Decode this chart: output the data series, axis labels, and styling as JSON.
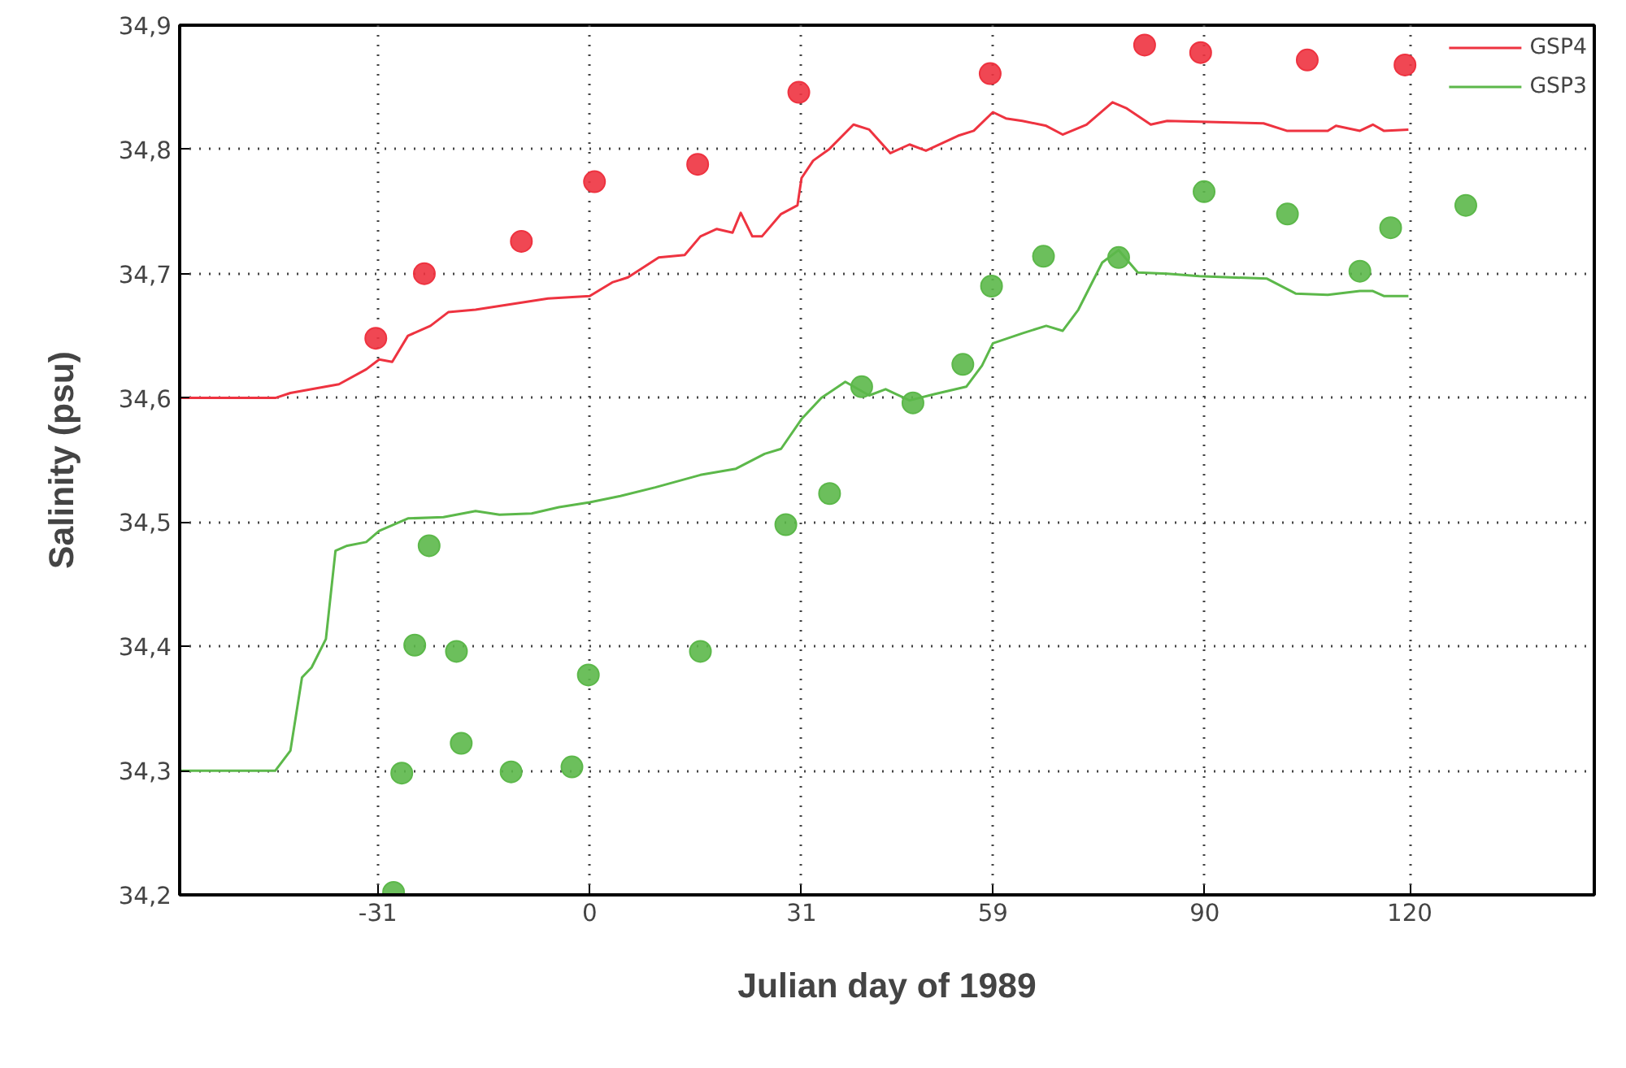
{
  "chart_data": {
    "type": "line",
    "xlabel": "Julian day of 1989",
    "ylabel": "Salinity (psu)",
    "xlim": [
      -60,
      147
    ],
    "ylim": [
      34.2,
      34.9
    ],
    "xticks": [
      -31,
      0,
      31,
      59,
      90,
      120
    ],
    "yticks": [
      {
        "value": 34.2,
        "label": "34,2"
      },
      {
        "value": 34.3,
        "label": "34,3"
      },
      {
        "value": 34.4,
        "label": "34,4"
      },
      {
        "value": 34.5,
        "label": "34,5"
      },
      {
        "value": 34.6,
        "label": "34,6"
      },
      {
        "value": 34.7,
        "label": "34,7"
      },
      {
        "value": 34.8,
        "label": "34,8"
      },
      {
        "value": 34.9,
        "label": "34,9"
      }
    ],
    "grid": true,
    "legend": "top right",
    "line_style": "solid",
    "series": [
      {
        "name": "GSP4",
        "color": "#ee3340",
        "x": [
          -60,
          -46,
          -43.8,
          -36.7,
          -32.7,
          -30.8,
          -28.9,
          -26.6,
          -23.3,
          -20.7,
          -16.7,
          -14.4,
          -6.1,
          0,
          3.3,
          5.6,
          10.1,
          13.9,
          16.2,
          18.6,
          20.9,
          22.1,
          23.8,
          25.2,
          28,
          30.4,
          31,
          32.7,
          35,
          38.6,
          40.9,
          44,
          46.8,
          49.2,
          53.9,
          56.2,
          59,
          60.9,
          63.3,
          66.8,
          69.2,
          72.7,
          76.5,
          78.6,
          82.1,
          84.5,
          98.6,
          102,
          108,
          109.2,
          112.7,
          114.6,
          116.2,
          119.8
        ],
        "values": [
          34.6,
          34.6,
          34.604,
          34.611,
          34.623,
          34.631,
          34.629,
          34.65,
          34.658,
          34.669,
          34.671,
          34.673,
          34.68,
          34.682,
          34.693,
          34.697,
          34.713,
          34.715,
          34.73,
          34.736,
          34.733,
          34.749,
          34.73,
          34.73,
          34.748,
          34.755,
          34.777,
          34.791,
          34.8,
          34.82,
          34.816,
          34.797,
          34.804,
          34.799,
          34.811,
          34.815,
          34.83,
          34.825,
          34.823,
          34.819,
          34.812,
          34.82,
          34.838,
          34.833,
          34.82,
          34.823,
          34.821,
          34.815,
          34.815,
          34.819,
          34.815,
          34.82,
          34.815,
          34.816
        ]
      },
      {
        "name": "GSP3",
        "color": "#5cb84a",
        "x": [
          -60,
          -46,
          -43.8,
          -42.1,
          -40.7,
          -38.6,
          -37.2,
          -35.5,
          -32.7,
          -30.8,
          -26.6,
          -21.4,
          -16.7,
          -13.2,
          -8.5,
          -4.5,
          0,
          4.5,
          9.6,
          16.2,
          21.4,
          25.6,
          28,
          31,
          33.9,
          37.4,
          40.9,
          43.3,
          46.8,
          50.4,
          55.1,
          57.4,
          59,
          63.3,
          66.8,
          69.2,
          71.5,
          75,
          77.4,
          80.2,
          84.5,
          89.2,
          99.1,
          103.3,
          108,
          112.7,
          114.6,
          116.2,
          119.8
        ],
        "values": [
          34.3,
          34.3,
          34.316,
          34.375,
          34.383,
          34.406,
          34.477,
          34.481,
          34.484,
          34.493,
          34.503,
          34.504,
          34.509,
          34.506,
          34.507,
          34.512,
          34.516,
          34.521,
          34.528,
          34.538,
          34.543,
          34.555,
          34.559,
          34.583,
          34.6,
          34.613,
          34.602,
          34.607,
          34.598,
          34.603,
          34.609,
          34.626,
          34.644,
          34.652,
          34.658,
          34.654,
          34.671,
          34.709,
          34.719,
          34.701,
          34.7,
          34.698,
          34.696,
          34.684,
          34.683,
          34.686,
          34.686,
          34.682,
          34.682
        ]
      },
      {
        "type": "scatter",
        "marker": "circle",
        "color": "#ee3340",
        "x": [
          -31.3,
          -24.2,
          -10,
          0.7,
          15.8,
          30.6,
          58.6,
          81.2,
          89.4,
          105,
          119.3
        ],
        "values": [
          34.648,
          34.7,
          34.726,
          34.774,
          34.788,
          34.846,
          34.861,
          34.884,
          34.878,
          34.872,
          34.868
        ]
      },
      {
        "type": "scatter",
        "marker": "circle",
        "color": "#5cb84a",
        "x": [
          -28.7,
          -27.5,
          -25.6,
          -23.5,
          -19.5,
          -18.8,
          -11.5,
          -2.6,
          -0.2,
          16.2,
          28.7,
          35.1,
          39.8,
          47.3,
          54.6,
          58.8,
          66.4,
          77.4,
          89.9,
          102.1,
          112.7,
          117.2,
          128.2
        ],
        "values": [
          34.202,
          34.298,
          34.401,
          34.481,
          34.396,
          34.322,
          34.299,
          34.303,
          34.377,
          34.396,
          34.498,
          34.523,
          34.609,
          34.596,
          34.627,
          34.69,
          34.714,
          34.713,
          34.766,
          34.748,
          34.702,
          34.737,
          34.755
        ]
      }
    ]
  }
}
